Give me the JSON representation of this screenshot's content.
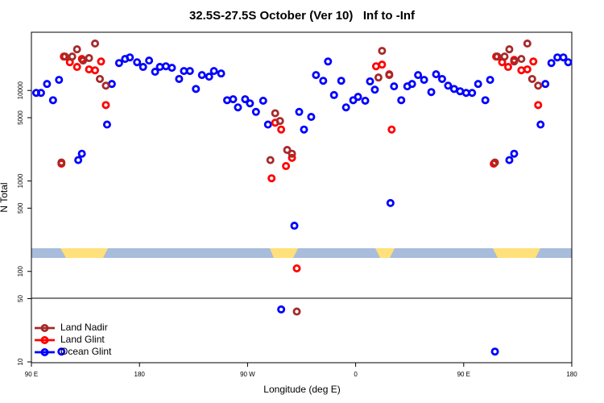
{
  "chart_data": {
    "type": "scatter",
    "title": "32.5S-27.5S October (Ver 10)   Inf to -Inf",
    "x_label": "Longitude (deg E)",
    "y_label": "N Total",
    "log_y": true,
    "legend": "bottom-left",
    "xlim": [
      90,
      540
    ],
    "xticks": [
      {
        "value": 90,
        "label": "90 E"
      },
      180,
      {
        "value": 270,
        "label": "90 W"
      },
      {
        "value": 360,
        "label": "0"
      },
      {
        "value": 450,
        "label": "90 E"
      },
      {
        "value": 540,
        "label": "180"
      }
    ],
    "ylim": [
      10,
      44000
    ],
    "yticks": [
      10,
      50,
      100,
      500,
      1000,
      5000,
      10000
    ],
    "series": [
      {
        "name": "Ocean Glint",
        "color": "#0000ff",
        "x": [
          94,
          98,
          103,
          108,
          113,
          115,
          129,
          132,
          153,
          157,
          163,
          168,
          172,
          178,
          183,
          188,
          193,
          197,
          202,
          207,
          213,
          217,
          222,
          227,
          232,
          238,
          242,
          248,
          253,
          258,
          262,
          268,
          272,
          277,
          283,
          287,
          298,
          309,
          313,
          317,
          323,
          327,
          333,
          337,
          342,
          348,
          352,
          358,
          362,
          368,
          372,
          376,
          389,
          392,
          398,
          403,
          407,
          412,
          417,
          423,
          427,
          432,
          437,
          442,
          447,
          452,
          457,
          462,
          468,
          472,
          476,
          488,
          492,
          514,
          518,
          523,
          528,
          533,
          537
        ],
        "values": [
          9400,
          9400,
          11800,
          7800,
          13100,
          13,
          1700,
          2000,
          4200,
          11800,
          20100,
          22300,
          23200,
          20500,
          18200,
          21400,
          16100,
          18200,
          18500,
          17800,
          13400,
          16400,
          16400,
          10400,
          14800,
          14200,
          16400,
          15400,
          7800,
          8000,
          6500,
          8000,
          7200,
          5800,
          7700,
          4200,
          38,
          320,
          5800,
          3700,
          5100,
          14800,
          12800,
          20900,
          8900,
          12800,
          6500,
          7800,
          8500,
          7700,
          12600,
          10200,
          570,
          11100,
          7800,
          11100,
          11800,
          14800,
          13100,
          9600,
          15100,
          13400,
          11300,
          10400,
          9800,
          9400,
          9400,
          11800,
          7800,
          13100,
          13,
          1700,
          2000,
          4200,
          11800,
          20100,
          23200,
          23200,
          20500
        ]
      },
      {
        "name": "Land Glint",
        "color": "#ff0000",
        "x": [
          115,
          117,
          122,
          128,
          132,
          138,
          143,
          148,
          152,
          290,
          293,
          298,
          302,
          307,
          311,
          377,
          382,
          388,
          390,
          475,
          477,
          482,
          487,
          492,
          498,
          503,
          508,
          512
        ],
        "values": [
          1550,
          23700,
          20500,
          18200,
          22300,
          17100,
          16700,
          20900,
          6900,
          1070,
          4400,
          3700,
          1460,
          1800,
          108,
          18500,
          19300,
          15100,
          3700,
          1550,
          23700,
          20500,
          18200,
          21800,
          16700,
          17100,
          20900,
          6900
        ]
      },
      {
        "name": "Land Nadir",
        "color": "#a52a2a",
        "x": [
          115,
          118,
          124,
          128,
          133,
          138,
          143,
          147,
          152,
          289,
          293,
          297,
          303,
          307,
          311,
          379,
          382,
          388,
          476,
          478,
          484,
          488,
          492,
          498,
          503,
          507,
          512
        ],
        "values": [
          1600,
          23700,
          23700,
          28500,
          21400,
          22800,
          33000,
          13400,
          11300,
          1700,
          5600,
          4600,
          2200,
          2000,
          36,
          13900,
          27400,
          14800,
          1600,
          23700,
          23700,
          28500,
          20900,
          22300,
          33000,
          13400,
          11300
        ]
      }
    ]
  }
}
